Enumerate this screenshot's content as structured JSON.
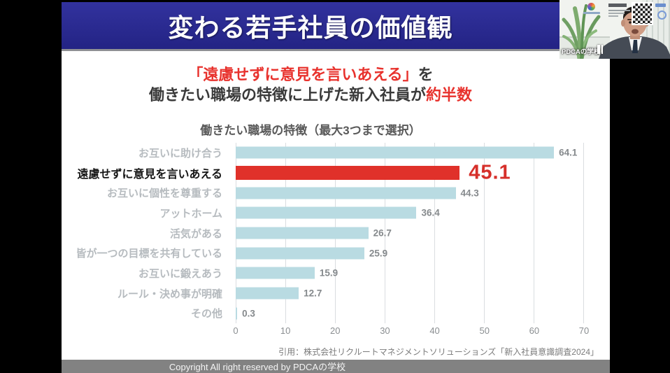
{
  "slide": {
    "header": {
      "title": "変わる若手社員の価値観"
    },
    "subtitle": {
      "line1_red": "「遠慮せずに意見を言いあえる」",
      "line1_rest": "を",
      "line2_main": "働きたい職場の特徴に上げた新入社員が",
      "line2_red": "約半数"
    },
    "citation": "引用：株式会社リクルートマネジメントソリューションズ「新入社員意識調査2024」",
    "footer": "Copyright All right reserved by PDCAの学校"
  },
  "chart_data": {
    "type": "bar",
    "orientation": "horizontal",
    "title": "働きたい職場の特徴（最大3つまで選択）",
    "categories": [
      "お互いに助け合う",
      "遠慮せずに意見を言いあえる",
      "お互いに個性を尊重する",
      "アットホーム",
      "活気がある",
      "皆が一つの目標を共有している",
      "お互いに鍛えあう",
      "ルール・決め事が明確",
      "その他"
    ],
    "values": [
      64.1,
      45.1,
      44.3,
      36.4,
      26.7,
      25.9,
      15.9,
      12.7,
      0.3
    ],
    "highlight_index": 1,
    "x_ticks": [
      0,
      10,
      20,
      30,
      40,
      50,
      60,
      70
    ],
    "xlim": [
      0,
      70
    ],
    "grid": true,
    "legend": false,
    "colors": {
      "bar": "#b9dbe2",
      "highlight_bar": "#e0312a",
      "value": "#85898c",
      "highlight_value": "#d62f2a",
      "category": "#b6bbbf",
      "highlight_category": "#151515",
      "header_blue": "#2a2a90",
      "accent_red": "#e8322d"
    }
  },
  "webcam": {
    "watermark": "PDCAの学校"
  }
}
